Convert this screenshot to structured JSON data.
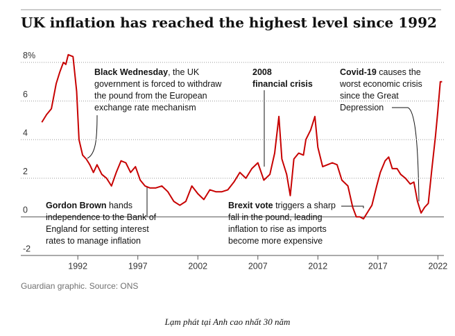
{
  "chart_data": {
    "type": "line",
    "title": "UK inflation has reached the highest level since 1992",
    "source": "Guardian graphic. Source: ONS",
    "caption": "Lạm phát tại Anh cao nhất 30 năm",
    "x": [
      1989.0,
      1989.4,
      1989.8,
      1990.2,
      1990.5,
      1990.8,
      1991.0,
      1991.2,
      1991.6,
      1991.9,
      1992.1,
      1992.4,
      1992.7,
      1993.0,
      1993.3,
      1993.6,
      1994.0,
      1994.4,
      1994.8,
      1995.2,
      1995.6,
      1996.0,
      1996.4,
      1996.8,
      1997.2,
      1997.6,
      1998.0,
      1998.5,
      1999.0,
      1999.5,
      2000.0,
      2000.5,
      2001.0,
      2001.5,
      2002.0,
      2002.5,
      2003.0,
      2003.5,
      2004.0,
      2004.5,
      2005.0,
      2005.5,
      2006.0,
      2006.5,
      2007.0,
      2007.5,
      2008.0,
      2008.4,
      2008.75,
      2009.0,
      2009.4,
      2009.7,
      2010.0,
      2010.4,
      2010.8,
      2011.0,
      2011.4,
      2011.75,
      2012.0,
      2012.4,
      2012.8,
      2013.2,
      2013.6,
      2014.0,
      2014.5,
      2014.9,
      2015.2,
      2015.5,
      2015.8,
      2016.2,
      2016.5,
      2016.9,
      2017.2,
      2017.6,
      2017.9,
      2018.2,
      2018.6,
      2018.9,
      2019.3,
      2019.7,
      2020.0,
      2020.3,
      2020.6,
      2020.9,
      2021.2,
      2021.5,
      2021.8,
      2022.0,
      2022.2,
      2022.35
    ],
    "series": [
      {
        "name": "UK inflation",
        "color": "#c70000",
        "values": [
          4.9,
          5.3,
          5.6,
          6.9,
          7.5,
          8.0,
          7.9,
          8.4,
          8.3,
          6.5,
          4.0,
          3.2,
          3.0,
          2.7,
          2.3,
          2.7,
          2.2,
          2.0,
          1.6,
          2.3,
          2.9,
          2.8,
          2.3,
          2.6,
          1.9,
          1.6,
          1.5,
          1.5,
          1.6,
          1.3,
          0.8,
          0.6,
          0.8,
          1.6,
          1.2,
          0.9,
          1.4,
          1.3,
          1.3,
          1.4,
          1.8,
          2.3,
          2.0,
          2.5,
          2.8,
          1.9,
          2.2,
          3.3,
          5.2,
          3.0,
          2.2,
          1.1,
          3.0,
          3.3,
          3.2,
          4.0,
          4.5,
          5.2,
          3.6,
          2.6,
          2.7,
          2.8,
          2.7,
          1.9,
          1.6,
          0.5,
          0.0,
          0.0,
          -0.1,
          0.3,
          0.6,
          1.6,
          2.3,
          2.9,
          3.1,
          2.5,
          2.5,
          2.2,
          2.0,
          1.7,
          1.8,
          0.8,
          0.2,
          0.5,
          0.7,
          2.5,
          4.2,
          5.5,
          7.0,
          7.0
        ]
      }
    ],
    "xlim": [
      1987.25,
      2022.5
    ],
    "ylim": [
      -2,
      8.5
    ],
    "xticks": [
      1992,
      1997,
      2002,
      2007,
      2012,
      2017,
      2022
    ],
    "yticks": [
      -2,
      0,
      2,
      4,
      {
        "value": 6,
        "label": "6"
      },
      {
        "value": 8,
        "label": "8%"
      }
    ],
    "grid": true,
    "annotations": [
      {
        "lines": [
          [
            {
              "text": "Black Wednesday",
              "bold": true
            },
            {
              "text": ", the UK",
              "bold": false
            }
          ],
          [
            {
              "text": "government is forced to withdraw",
              "bold": false
            }
          ],
          [
            {
              "text": "the pound from the European",
              "bold": false
            }
          ],
          [
            {
              "text": "exchange rate mechanism",
              "bold": false
            }
          ]
        ]
      },
      {
        "lines": [
          [
            {
              "text": "2008",
              "bold": true
            }
          ],
          [
            {
              "text": "financial crisis",
              "bold": true
            }
          ]
        ]
      },
      {
        "lines": [
          [
            {
              "text": "Covid-19",
              "bold": true
            },
            {
              "text": " causes the",
              "bold": false
            }
          ],
          [
            {
              "text": "worst economic crisis",
              "bold": false
            }
          ],
          [
            {
              "text": "since the Great",
              "bold": false
            }
          ],
          [
            {
              "text": "Depression",
              "bold": false
            }
          ]
        ]
      },
      {
        "lines": [
          [
            {
              "text": "Gordon Brown",
              "bold": true
            },
            {
              "text": " hands",
              "bold": false
            }
          ],
          [
            {
              "text": "independence to the Bank of",
              "bold": false
            }
          ],
          [
            {
              "text": "England for setting interest",
              "bold": false
            }
          ],
          [
            {
              "text": "rates to manage inflation",
              "bold": false
            }
          ]
        ]
      },
      {
        "lines": [
          [
            {
              "text": "Brexit vote",
              "bold": true
            },
            {
              "text": " triggers a sharp",
              "bold": false
            }
          ],
          [
            {
              "text": "fall in the pound, leading",
              "bold": false
            }
          ],
          [
            {
              "text": "inflation to rise as imports",
              "bold": false
            }
          ],
          [
            {
              "text": "become more expensive",
              "bold": false
            }
          ]
        ]
      }
    ]
  }
}
